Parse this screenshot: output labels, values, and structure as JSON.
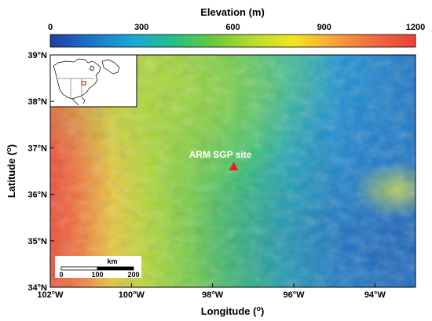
{
  "colorbar": {
    "title": "Elevation (m)",
    "ticks": [
      "0",
      "300",
      "600",
      "900",
      "1200"
    ],
    "min": 0,
    "max": 1200,
    "colors": [
      "#1f3fa0",
      "#1a74c8",
      "#19a7d6",
      "#22c08a",
      "#66c93c",
      "#b8dc2a",
      "#f3e51e",
      "#f8a23a",
      "#f16a3e",
      "#e8403a"
    ]
  },
  "map": {
    "lon_range": [
      -102,
      -93
    ],
    "lat_range": [
      34,
      39
    ],
    "x_ticks": [
      "102°W",
      "100°W",
      "98°W",
      "96°W",
      "94°W"
    ],
    "x_tick_values": [
      -102,
      -100,
      -98,
      -96,
      -94
    ],
    "y_ticks": [
      "39°N",
      "38°N",
      "37°N",
      "36°N",
      "35°N",
      "34°N"
    ],
    "y_tick_values": [
      39,
      38,
      37,
      36,
      35,
      34
    ],
    "xlabel": "Longitude (",
    "xlabel_sup": "o",
    "xlabel_end": ")",
    "ylabel": "Latitude (",
    "ylabel_sup": "o",
    "ylabel_end": ")"
  },
  "site": {
    "label": "ARM SGP site",
    "lon": -97.48,
    "lat": 36.6,
    "marker_color": "#e8201e"
  },
  "scalebar": {
    "unit": "km",
    "labels": [
      "0",
      "100",
      "200"
    ]
  }
}
